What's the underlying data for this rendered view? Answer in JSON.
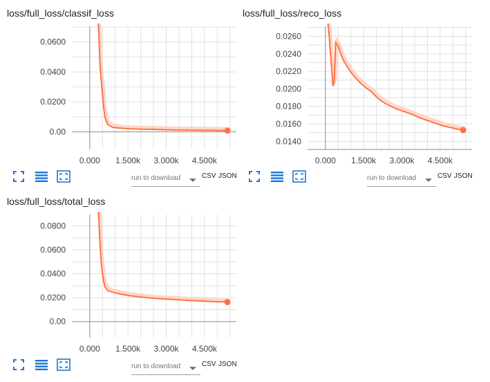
{
  "colors": {
    "series": "#ff7043",
    "raw": "#ffccbc",
    "axis": "#9e9e9e",
    "grid": "#e0e0e0",
    "icon": "#1976d2"
  },
  "toolbar": {
    "run_select": "run to download",
    "csv": "CSV",
    "json": "JSON",
    "icons": [
      "fit-domain-icon",
      "toggle-log-icon",
      "expand-icon"
    ]
  },
  "chart_data": [
    {
      "type": "line",
      "title": "loss/full_loss/classif_loss",
      "xlabel": "",
      "ylabel": "",
      "x_ticks": [
        "0.000",
        "1.500k",
        "3.000k",
        "4.500k"
      ],
      "x_tick_values": [
        0,
        1500,
        3000,
        4500
      ],
      "y_ticks": [
        "0.0600",
        "0.0400",
        "0.0200",
        "0.00"
      ],
      "y_tick_values": [
        0.06,
        0.04,
        0.02,
        0.0
      ],
      "xlim": [
        -700,
        5750
      ],
      "ylim": [
        -0.0118,
        0.0705
      ],
      "grid": true,
      "series": [
        {
          "x": [
            0,
            350,
            400,
            450,
            500,
            550,
            600,
            700,
            900,
            1200,
            1600,
            2000,
            2500,
            3000,
            3500,
            4000,
            4500,
            5000,
            5400
          ],
          "y": [
            0.15,
            0.069,
            0.045,
            0.035,
            0.025,
            0.016,
            0.0095,
            0.005,
            0.003,
            0.0025,
            0.002,
            0.0018,
            0.0016,
            0.0014,
            0.0012,
            0.0011,
            0.001,
            0.0009,
            0.0008
          ]
        }
      ],
      "last_point": {
        "x": 5400,
        "y": 0.0008
      }
    },
    {
      "type": "line",
      "title": "loss/full_loss/reco_loss",
      "xlabel": "",
      "ylabel": "",
      "x_ticks": [
        "0.000",
        "1.500k",
        "3.000k",
        "4.500k"
      ],
      "x_tick_values": [
        0,
        1500,
        3000,
        4500
      ],
      "y_ticks": [
        "0.0260",
        "0.0240",
        "0.0220",
        "0.0200",
        "0.0180",
        "0.0160",
        "0.0140"
      ],
      "y_tick_values": [
        0.026,
        0.024,
        0.022,
        0.02,
        0.018,
        0.016,
        0.014
      ],
      "xlim": [
        -700,
        5750
      ],
      "ylim": [
        0.01308,
        0.02714
      ],
      "grid": true,
      "series": [
        {
          "x": [
            100,
            150,
            200,
            250,
            300,
            350,
            400,
            500,
            600,
            700,
            800,
            1000,
            1200,
            1400,
            1600,
            1800,
            2000,
            2200,
            2500,
            2800,
            3100,
            3400,
            3700,
            4000,
            4300,
            4600,
            4900,
            5200,
            5400
          ],
          "y": [
            0.0275,
            0.026,
            0.024,
            0.022,
            0.0203,
            0.021,
            0.0253,
            0.0249,
            0.024,
            0.0233,
            0.0228,
            0.0219,
            0.0212,
            0.0206,
            0.0201,
            0.0197,
            0.0191,
            0.0186,
            0.0181,
            0.0177,
            0.0174,
            0.0171,
            0.0167,
            0.0164,
            0.0161,
            0.0158,
            0.0156,
            0.0154,
            0.0153
          ]
        }
      ],
      "last_point": {
        "x": 5400,
        "y": 0.0153
      }
    },
    {
      "type": "line",
      "title": "loss/full_loss/total_loss",
      "xlabel": "",
      "ylabel": "",
      "x_ticks": [
        "0.000",
        "1.500k",
        "3.000k",
        "4.500k"
      ],
      "x_tick_values": [
        0,
        1500,
        3000,
        4500
      ],
      "y_ticks": [
        "0.0800",
        "0.0600",
        "0.0400",
        "0.0200",
        "0.00"
      ],
      "y_tick_values": [
        0.08,
        0.06,
        0.04,
        0.02,
        0.0
      ],
      "xlim": [
        -700,
        5750
      ],
      "ylim": [
        -0.0135,
        0.0895
      ],
      "grid": true,
      "series": [
        {
          "x": [
            0,
            350,
            400,
            450,
            500,
            550,
            600,
            700,
            900,
            1200,
            1600,
            2000,
            2500,
            3000,
            3500,
            4000,
            4500,
            5000,
            5400
          ],
          "y": [
            0.17,
            0.09,
            0.066,
            0.05,
            0.04,
            0.033,
            0.029,
            0.026,
            0.0245,
            0.023,
            0.0215,
            0.0205,
            0.0195,
            0.0188,
            0.0182,
            0.0175,
            0.017,
            0.0166,
            0.0163
          ]
        }
      ],
      "last_point": {
        "x": 5400,
        "y": 0.0163
      }
    }
  ]
}
